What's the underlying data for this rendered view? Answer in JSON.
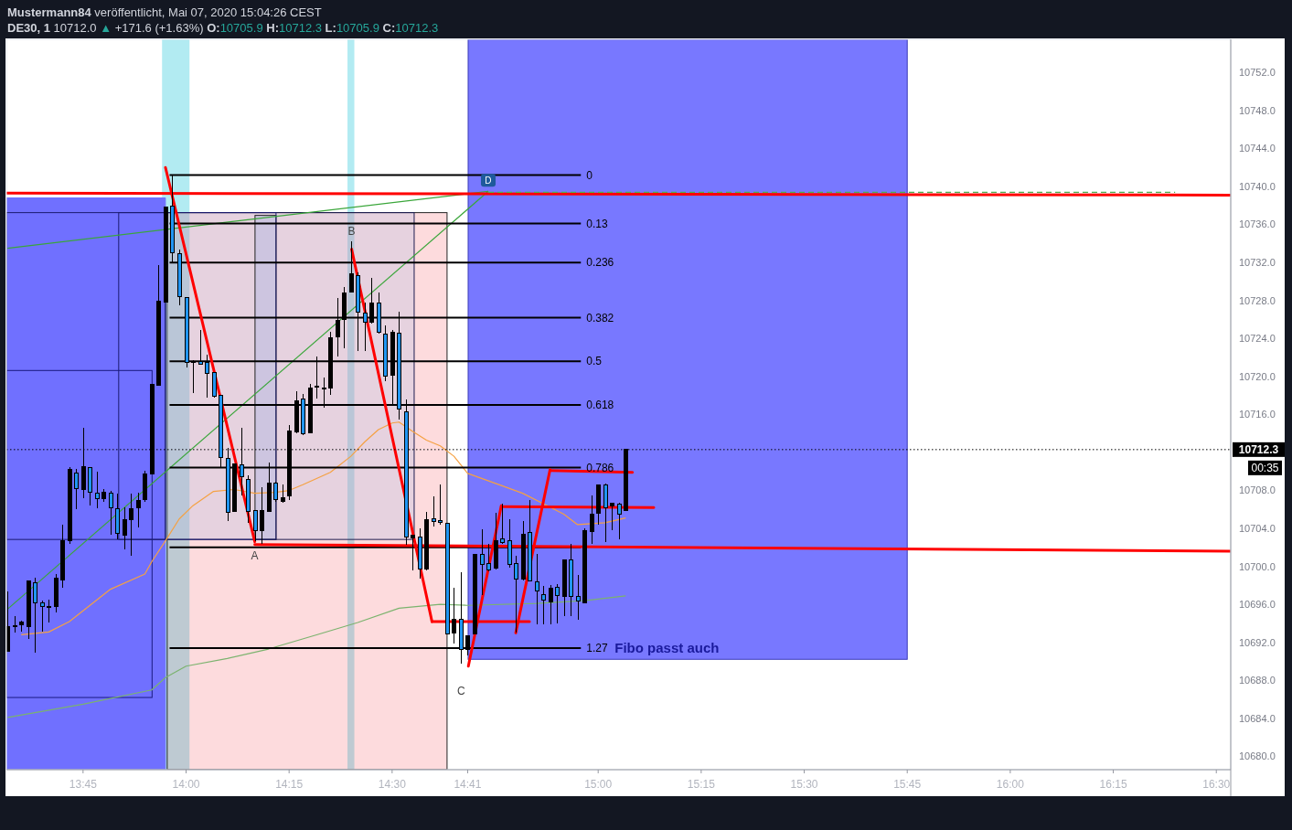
{
  "chart_data": {
    "type": "candlestick",
    "title": "Mustermann84 veröffentlicht, Mai 07, 2020 15:04:26 CEST",
    "subtitle": "DE30, 1 10712.0 ▲ +171.6 (+1.63%) O:10705.9 H:10712.3 L:10705.9 C:10712.3",
    "xlim": [
      13.564,
      16.535
    ],
    "xticks": [
      {
        "value": 13.75,
        "label": "13:45"
      },
      {
        "value": 14,
        "label": "14:00"
      },
      {
        "value": 14.25,
        "label": "14:15"
      },
      {
        "value": 14.5,
        "label": "14:30"
      },
      {
        "value": 14.6833,
        "label": "14:41"
      },
      {
        "value": 15,
        "label": "15:00"
      },
      {
        "value": 15.25,
        "label": "15:15"
      },
      {
        "value": 15.5,
        "label": "15:30"
      },
      {
        "value": 15.75,
        "label": "15:45"
      },
      {
        "value": 16,
        "label": "16:00"
      },
      {
        "value": 16.25,
        "label": "16:15"
      },
      {
        "value": 16.5,
        "label": "16:30"
      }
    ],
    "ylim": [
      10678.6,
      10755.5
    ],
    "yticks": [
      {
        "value": 10680,
        "label": "10680.0"
      },
      {
        "value": 10684,
        "label": "10684.0"
      },
      {
        "value": 10688,
        "label": "10688.0"
      },
      {
        "value": 10692,
        "label": "10692.0"
      },
      {
        "value": 10696,
        "label": "10696.0"
      },
      {
        "value": 10700,
        "label": "10700.0"
      },
      {
        "value": 10704,
        "label": "10704.0"
      },
      {
        "value": 10708,
        "label": "10708.0"
      },
      {
        "value": 10716,
        "label": "10716.0"
      },
      {
        "value": 10720,
        "label": "10720.0"
      },
      {
        "value": 10724,
        "label": "10724.0"
      },
      {
        "value": 10728,
        "label": "10728.0"
      },
      {
        "value": 10732,
        "label": "10732.0"
      },
      {
        "value": 10736,
        "label": "10736.0"
      },
      {
        "value": 10740,
        "label": "10740.0"
      },
      {
        "value": 10744,
        "label": "10744.0"
      },
      {
        "value": 10748,
        "label": "10748.0"
      },
      {
        "value": 10752,
        "label": "10752.0"
      }
    ],
    "x": [
      13.5667,
      13.5833,
      13.6,
      13.6167,
      13.6333,
      13.65,
      13.6667,
      13.6833,
      13.7,
      13.7167,
      13.7333,
      13.75,
      13.7667,
      13.7833,
      13.8,
      13.8167,
      13.8333,
      13.85,
      13.8667,
      13.8833,
      13.9,
      13.9167,
      13.9333,
      13.95,
      13.9667,
      13.9833,
      14,
      14.0167,
      14.0333,
      14.05,
      14.0667,
      14.0833,
      14.1,
      14.1167,
      14.1333,
      14.15,
      14.1667,
      14.1833,
      14.2,
      14.2167,
      14.2333,
      14.25,
      14.2667,
      14.2833,
      14.3,
      14.3167,
      14.3333,
      14.35,
      14.3667,
      14.3833,
      14.4,
      14.4167,
      14.4333,
      14.45,
      14.4667,
      14.4833,
      14.5,
      14.5167,
      14.5333,
      14.55,
      14.5667,
      14.5833,
      14.6,
      14.6167,
      14.6333,
      14.65,
      14.6667,
      14.6833,
      14.7,
      14.7167,
      14.7333,
      14.75,
      14.7667,
      14.7833,
      14.8,
      14.8167,
      14.8333,
      14.85,
      14.8667,
      14.8833,
      14.9,
      14.9167,
      14.9333,
      14.95,
      14.9667,
      14.9833,
      15,
      15.0167,
      15.0333,
      15.05,
      15.0667
    ],
    "ohlc": [
      [
        10691.1,
        10697.4,
        10691.1,
        10693.7
      ],
      [
        10693.7,
        10694.8,
        10693.0,
        10693.8
      ],
      [
        10693.9,
        10694.3,
        10693.1,
        10694.1
      ],
      [
        10693.7,
        10698.5,
        10692.4,
        10698.5
      ],
      [
        10698.3,
        10698.8,
        10690.9,
        10696.2
      ],
      [
        10696.2,
        10696.4,
        10693.1,
        10695.8
      ],
      [
        10695.7,
        10696.5,
        10694.1,
        10695.8
      ],
      [
        10695.8,
        10699.2,
        10695.2,
        10698.8
      ],
      [
        10698.6,
        10704.4,
        10697.8,
        10702.7
      ],
      [
        10702.7,
        10710.5,
        10702.4,
        10710.2
      ],
      [
        10709.8,
        10710.3,
        10706.0,
        10708.2
      ],
      [
        10708.1,
        10714.6,
        10707.2,
        10710.5
      ],
      [
        10710.4,
        10710.4,
        10706.4,
        10707.8
      ],
      [
        10707.7,
        10710.0,
        10706.1,
        10707.1
      ],
      [
        10707.1,
        10708.1,
        10706.8,
        10707.8
      ],
      [
        10707.7,
        10708.0,
        10703.3,
        10706.2
      ],
      [
        10706.1,
        10707.7,
        10702.9,
        10703.5
      ],
      [
        10703.3,
        10706.2,
        10701.8,
        10704.9
      ],
      [
        10704.9,
        10707.7,
        10701.1,
        10706.1
      ],
      [
        10706.2,
        10707.8,
        10704.1,
        10706.9
      ],
      [
        10707.0,
        10710.1,
        10706.8,
        10709.7
      ],
      [
        10709.7,
        10719.2,
        10709.7,
        10719.2
      ],
      [
        10719.1,
        10731.7,
        10719.0,
        10727.9
      ],
      [
        10727.8,
        10737.8,
        10727.8,
        10737.8
      ],
      [
        10737.9,
        10741.2,
        10731.9,
        10733.0
      ],
      [
        10732.9,
        10733.4,
        10727.5,
        10728.4
      ],
      [
        10728.3,
        10728.3,
        10720.9,
        10721.5
      ],
      [
        10721.5,
        10721.7,
        10718.3,
        10721.6
      ],
      [
        10721.6,
        10724.9,
        10721.2,
        10721.3
      ],
      [
        10721.5,
        10722.3,
        10717.8,
        10720.3
      ],
      [
        10720.4,
        10720.4,
        10717.8,
        10717.9
      ],
      [
        10718.0,
        10718.0,
        10710.5,
        10711.5
      ],
      [
        10711.4,
        10712.5,
        10704.8,
        10705.7
      ],
      [
        10705.8,
        10710.8,
        10705.8,
        10710.8
      ],
      [
        10710.7,
        10714.6,
        10707.5,
        10709.4
      ],
      [
        10709.2,
        10709.6,
        10704.6,
        10705.8
      ],
      [
        10705.9,
        10705.9,
        10702.7,
        10703.8
      ],
      [
        10703.8,
        10708.3,
        10702.4,
        10705.9
      ],
      [
        10705.8,
        10710.9,
        10705.7,
        10708.8
      ],
      [
        10708.8,
        10708.9,
        10706.8,
        10707.0
      ],
      [
        10706.8,
        10708.6,
        10706.7,
        10707.2
      ],
      [
        10707.4,
        10714.9,
        10707.0,
        10714.3
      ],
      [
        10714.2,
        10718.4,
        10714.0,
        10717.4
      ],
      [
        10717.6,
        10718.2,
        10713.8,
        10714.0
      ],
      [
        10714.1,
        10719.2,
        10714.0,
        10718.8
      ],
      [
        10718.9,
        10722.1,
        10717.7,
        10719.0
      ],
      [
        10718.8,
        10719.9,
        10716.7,
        10718.7
      ],
      [
        10718.8,
        10724.7,
        10718.1,
        10724.1
      ],
      [
        10724.2,
        10728.3,
        10722.1,
        10725.9
      ],
      [
        10726.0,
        10729.4,
        10723.0,
        10728.8
      ],
      [
        10728.9,
        10734.2,
        10728.8,
        10730.8
      ],
      [
        10730.6,
        10731.0,
        10722.7,
        10726.8
      ],
      [
        10726.7,
        10727.8,
        10722.7,
        10725.7
      ],
      [
        10725.7,
        10730.4,
        10725.6,
        10727.7
      ],
      [
        10727.7,
        10728.8,
        10724.5,
        10724.7
      ],
      [
        10724.5,
        10725.4,
        10719.5,
        10720.0
      ],
      [
        10720.1,
        10724.9,
        10717.1,
        10724.7
      ],
      [
        10724.6,
        10726.8,
        10715.5,
        10716.6
      ],
      [
        10716.3,
        10717.6,
        10702.3,
        10703.1
      ],
      [
        10703.0,
        10703.3,
        10699.6,
        10703.3
      ],
      [
        10703.1,
        10704.0,
        10698.7,
        10699.7
      ],
      [
        10699.7,
        10705.7,
        10699.6,
        10704.9
      ],
      [
        10705.0,
        10707.4,
        10704.2,
        10704.7
      ],
      [
        10704.8,
        10708.6,
        10704.4,
        10704.6
      ],
      [
        10704.5,
        10704.5,
        10692.8,
        10692.9
      ],
      [
        10693.0,
        10697.8,
        10691.9,
        10694.4
      ],
      [
        10694.4,
        10699.4,
        10689.8,
        10691.3
      ],
      [
        10691.3,
        10692.7,
        10690.6,
        10692.7
      ],
      [
        10692.9,
        10701.3,
        10692.8,
        10701.3
      ],
      [
        10701.3,
        10703.9,
        10697.0,
        10700.2
      ],
      [
        10700.3,
        10702.4,
        10699.5,
        10699.6
      ],
      [
        10699.8,
        10705.6,
        10699.7,
        10702.7
      ],
      [
        10702.9,
        10706.6,
        10702.4,
        10702.5
      ],
      [
        10702.7,
        10705.0,
        10699.9,
        10700.2
      ],
      [
        10700.3,
        10701.1,
        10693.0,
        10698.7
      ],
      [
        10698.7,
        10704.8,
        10698.5,
        10703.4
      ],
      [
        10703.6,
        10707.0,
        10698.4,
        10698.5
      ],
      [
        10698.4,
        10701.3,
        10693.9,
        10697.4
      ],
      [
        10697.0,
        10697.9,
        10693.9,
        10696.5
      ],
      [
        10696.3,
        10698.0,
        10693.9,
        10697.7
      ],
      [
        10697.8,
        10698.1,
        10694.0,
        10696.9
      ],
      [
        10696.8,
        10700.7,
        10694.8,
        10700.7
      ],
      [
        10700.7,
        10702.4,
        10694.8,
        10696.8
      ],
      [
        10696.8,
        10699.1,
        10694.4,
        10696.4
      ],
      [
        10696.2,
        10704.0,
        10696.1,
        10703.8
      ],
      [
        10703.7,
        10707.5,
        10702.4,
        10705.5
      ],
      [
        10705.6,
        10708.6,
        10704.4,
        10708.6
      ],
      [
        10708.6,
        10708.7,
        10702.6,
        10706.2
      ],
      [
        10706.4,
        10706.7,
        10703.8,
        10706.7
      ],
      [
        10706.6,
        10706.7,
        10702.9,
        10705.5
      ],
      [
        10705.9,
        10712.3,
        10705.9,
        10712.3
      ]
    ],
    "colors": [
      "#000000",
      "#000000",
      "#000000",
      "#000000",
      "#2196f3",
      "#2196f3",
      "#000000",
      "#000000",
      "#000000",
      "#000000",
      "#2196f3",
      "#000000",
      "#2196f3",
      "#2196f3",
      "#000000",
      "#2196f3",
      "#2196f3",
      "#000000",
      "#000000",
      "#000000",
      "#000000",
      "#000000",
      "#000000",
      "#000000",
      "#2196f3",
      "#2196f3",
      "#2196f3",
      "#000000",
      "#2196f3",
      "#2196f3",
      "#2196f3",
      "#2196f3",
      "#2196f3",
      "#000000",
      "#2196f3",
      "#2196f3",
      "#2196f3",
      "#000000",
      "#000000",
      "#2196f3",
      "#000000",
      "#000000",
      "#000000",
      "#2196f3",
      "#000000",
      "#000000",
      "#2196f3",
      "#000000",
      "#000000",
      "#000000",
      "#000000",
      "#2196f3",
      "#2196f3",
      "#000000",
      "#2196f3",
      "#2196f3",
      "#000000",
      "#2196f3",
      "#2196f3",
      "#000000",
      "#2196f3",
      "#000000",
      "#2196f3",
      "#2196f3",
      "#2196f3",
      "#000000",
      "#2196f3",
      "#000000",
      "#000000",
      "#2196f3",
      "#2196f3",
      "#000000",
      "#2196f3",
      "#2196f3",
      "#2196f3",
      "#000000",
      "#2196f3",
      "#2196f3",
      "#2196f3",
      "#000000",
      "#2196f3",
      "#000000",
      "#2196f3",
      "#2196f3",
      "#000000",
      "#000000",
      "#000000",
      "#2196f3",
      "#000000",
      "#2196f3",
      "#000000"
    ],
    "series": [
      {
        "type": "area",
        "color": "#7070ff",
        "x": [
          13.564,
          13.9498
        ],
        "values": [
          10738.8,
          10738.8
        ]
      },
      {
        "type": "line",
        "color": "#7bb36e",
        "x": [
          13.5667,
          13.75,
          13.9167,
          13.95,
          14.0,
          14.1,
          14.2,
          14.3167,
          14.4167,
          14.5167,
          14.6167,
          14.6833,
          14.85,
          14.9667,
          15.0667
        ],
        "values": [
          10684.1,
          10685.5,
          10687.0,
          10688.3,
          10689.5,
          10690.3,
          10691.3,
          10692.8,
          10694.1,
          10695.6,
          10696.0,
          10695.9,
          10696.1,
          10696.4,
          10696.9
        ]
      },
      {
        "type": "line",
        "color": "#f5a142",
        "x": [
          13.6,
          13.6667,
          13.7167,
          13.7667,
          13.8167,
          13.9,
          13.9167,
          13.95,
          13.9833,
          14.0167,
          14.0667,
          14.1167,
          14.1667,
          14.2167,
          14.25,
          14.2833,
          14.35,
          14.4,
          14.4333,
          14.4667,
          14.5,
          14.5167,
          14.55,
          14.5833,
          14.6167,
          14.65,
          14.6833,
          14.7667,
          14.8167,
          14.8667,
          14.9167,
          14.95,
          15.0167,
          15.0667
        ],
        "values": [
          10692.8,
          10693.1,
          10694.2,
          10695.9,
          10697.6,
          10699.2,
          10700.5,
          10702.7,
          10705.0,
          10706.4,
          10707.9,
          10708.1,
          10707.7,
          10707.8,
          10708.0,
          10708.6,
          10709.9,
          10711.6,
          10713.1,
          10714.4,
          10715.1,
          10715.2,
          10714.2,
          10713.3,
          10712.7,
          10711.6,
          10709.8,
          10708.5,
          10707.7,
          10706.6,
          10705.5,
          10704.4,
          10704.6,
          10705.1
        ]
      },
      {
        "type": "line",
        "color": "#3aa63a",
        "x": [
          13.5667,
          14.7333
        ],
        "values": [
          10695.5,
          10739.5
        ]
      },
      {
        "type": "line",
        "color": "#3aa63a",
        "x": [
          13.5667,
          14.7333
        ],
        "values": [
          10733.5,
          10739.5
        ]
      },
      {
        "type": "line",
        "name": "0",
        "color": "#000000",
        "x": [
          13.96,
          14.958
        ],
        "values": [
          10741.2,
          10741.2
        ]
      },
      {
        "type": "line",
        "name": "0.13",
        "color": "#000000",
        "x": [
          13.96,
          14.958
        ],
        "values": [
          10736.1,
          10736.1
        ]
      },
      {
        "type": "line",
        "name": "0.236",
        "color": "#000000",
        "x": [
          13.96,
          14.958
        ],
        "values": [
          10732.0,
          10732.0
        ]
      },
      {
        "type": "line",
        "name": "0.382",
        "color": "#000000",
        "x": [
          13.96,
          14.958
        ],
        "values": [
          10726.2,
          10726.2
        ]
      },
      {
        "type": "line",
        "name": "0.5",
        "color": "#000000",
        "x": [
          13.96,
          14.958
        ],
        "values": [
          10721.6,
          10721.6
        ]
      },
      {
        "type": "line",
        "name": "0.618",
        "color": "#000000",
        "x": [
          13.96,
          14.958
        ],
        "values": [
          10717.0,
          10717.0
        ]
      },
      {
        "type": "line",
        "name": "0.786",
        "color": "#000000",
        "x": [
          13.96,
          14.958
        ],
        "values": [
          10710.4,
          10710.4
        ]
      },
      {
        "type": "line",
        "color": "#000000",
        "x": [
          13.96,
          14.958
        ],
        "values": [
          10702.0,
          10702.0
        ]
      },
      {
        "type": "line",
        "name": "1.27",
        "color": "#000000",
        "x": [
          13.96,
          14.958
        ],
        "values": [
          10691.4,
          10691.4
        ]
      },
      {
        "type": "line",
        "color": "#ff0000",
        "x": [
          13.564,
          16.535
        ],
        "values": [
          10739.3,
          10739.1
        ]
      },
      {
        "type": "line",
        "color": "#4caf50",
        "line_style": "dashed",
        "x": [
          14.7333,
          16.4
        ],
        "values": [
          10739.4,
          10739.4
        ]
      },
      {
        "type": "line",
        "color": "#ff0000",
        "x": [
          13.95,
          14.1667
        ],
        "values": [
          10742.0,
          10702.6
        ]
      },
      {
        "type": "line",
        "color": "#ff0000",
        "x": [
          14.1667,
          16.535
        ],
        "values": [
          10702.3,
          10701.6
        ]
      },
      {
        "type": "line",
        "color": "#ff0000",
        "x": [
          14.4017,
          14.5967
        ],
        "values": [
          10733.4,
          10694.2
        ]
      },
      {
        "type": "line",
        "color": "#ff0000",
        "x": [
          14.5967,
          14.8333
        ],
        "values": [
          10694.2,
          10694.2
        ]
      },
      {
        "type": "line",
        "color": "#ff0000",
        "x": [
          14.685,
          14.765
        ],
        "values": [
          10689.5,
          10706.4
        ]
      },
      {
        "type": "line",
        "color": "#ff0000",
        "x": [
          14.765,
          15.135
        ],
        "values": [
          10706.3,
          10706.2
        ]
      },
      {
        "type": "line",
        "color": "#ff0000",
        "x": [
          14.8,
          14.8833
        ],
        "values": [
          10693.0,
          10710.2
        ]
      },
      {
        "type": "line",
        "color": "#ff0000",
        "x": [
          14.8833,
          15.0833
        ],
        "values": [
          10710.1,
          10709.9
        ]
      }
    ],
    "ref_lines": [
      {
        "axis": "y",
        "value": 10712.3,
        "label": "10712.3",
        "color": "#000000",
        "line_style": "dotted"
      }
    ],
    "bands": [
      {
        "axis": "x",
        "from": 13.9417,
        "to": 14.0083,
        "color": "#b2ebf2"
      },
      {
        "axis": "x",
        "from": 14.3917,
        "to": 14.4083,
        "color": "#b2ebf2"
      }
    ],
    "annotations": [
      {
        "text": "A",
        "x": 14.1667,
        "y": 10702.6
      },
      {
        "text": "B",
        "x": 14.4017,
        "y": 10733.4
      },
      {
        "text": "C",
        "x": 14.685,
        "y": 10689.5
      },
      {
        "text": "D",
        "x": 14.7333,
        "y": 10739.5
      },
      {
        "text": "Fibo passt auch",
        "x": 14.958,
        "y": 10691.4
      },
      "00:35"
    ]
  }
}
